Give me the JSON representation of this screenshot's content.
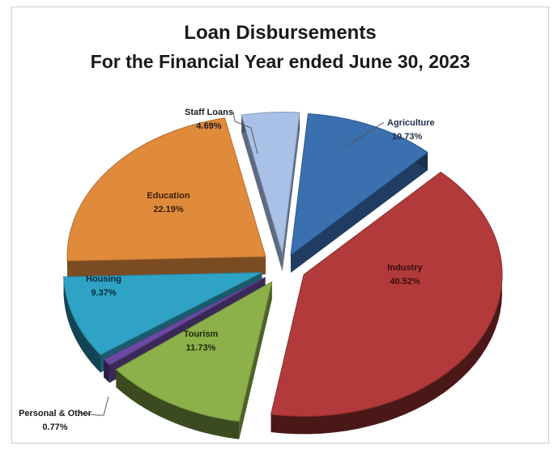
{
  "chart_data": {
    "type": "pie",
    "title": "Loan Disbursements",
    "subtitle": "For the Financial Year ended June 30, 2023",
    "slices": [
      {
        "name": "Agriculture",
        "value_label": "10.73%",
        "value": 10.73,
        "color": "#3a6fb0",
        "label_color": "#1f2d4a"
      },
      {
        "name": "Industry",
        "value_label": "40.52%",
        "value": 40.52,
        "color": "#b23a3a",
        "label_color": "#3a0d0d"
      },
      {
        "name": "Tourism",
        "value_label": "11.73%",
        "value": 11.73,
        "color": "#8cb04a",
        "label_color": "#1e2a0c"
      },
      {
        "name": "Personal & Other",
        "value_label": "0.77%",
        "value": 0.77,
        "color": "#6a4aa0",
        "label_color": "#1a1a1a"
      },
      {
        "name": "Housing",
        "value_label": "9.37%",
        "value": 9.37,
        "color": "#2fa3c6",
        "label_color": "#0c2a35"
      },
      {
        "name": "Education",
        "value_label": "22.19%",
        "value": 22.19,
        "color": "#e08a3c",
        "label_color": "#3a1f08"
      },
      {
        "name": "Staff Loans",
        "value_label": "4.69%",
        "value": 4.69,
        "color": "#a9c1e6",
        "label_color": "#1a1a1a"
      }
    ],
    "legend": "none",
    "style": "exploded-3d"
  }
}
